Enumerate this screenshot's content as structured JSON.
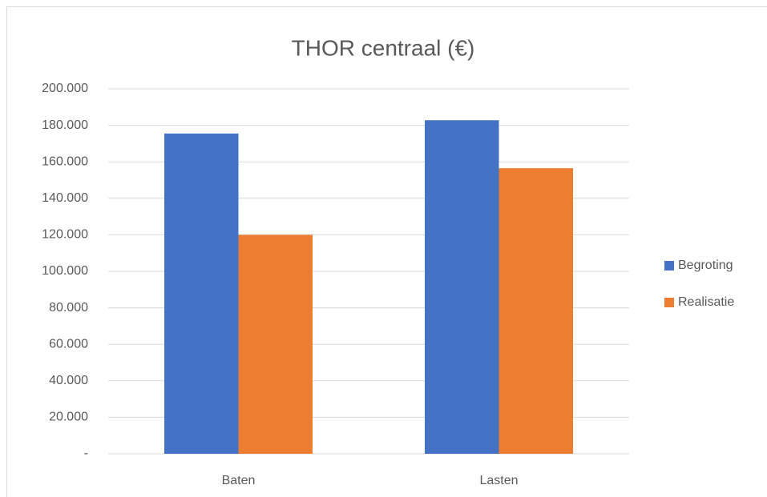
{
  "chart_data": {
    "type": "bar",
    "title": "THOR centraal (€)",
    "categories": [
      "Baten",
      "Lasten"
    ],
    "series": [
      {
        "name": "Begroting",
        "color": "#4472c4",
        "values": [
          175500,
          182800
        ]
      },
      {
        "name": "Realisatie",
        "color": "#ed7d31",
        "values": [
          120000,
          156500
        ]
      }
    ],
    "ylim": [
      0,
      200000
    ],
    "yticks": [
      {
        "value": 0,
        "label": "-"
      },
      {
        "value": 20000,
        "label": "20.000"
      },
      {
        "value": 40000,
        "label": "40.000"
      },
      {
        "value": 60000,
        "label": "60.000"
      },
      {
        "value": 80000,
        "label": "80.000"
      },
      {
        "value": 100000,
        "label": "100.000"
      },
      {
        "value": 120000,
        "label": "120.000"
      },
      {
        "value": 140000,
        "label": "140.000"
      },
      {
        "value": 160000,
        "label": "160.000"
      },
      {
        "value": 180000,
        "label": "180.000"
      },
      {
        "value": 200000,
        "label": "200.000"
      }
    ],
    "grid": true,
    "legend": "right"
  }
}
